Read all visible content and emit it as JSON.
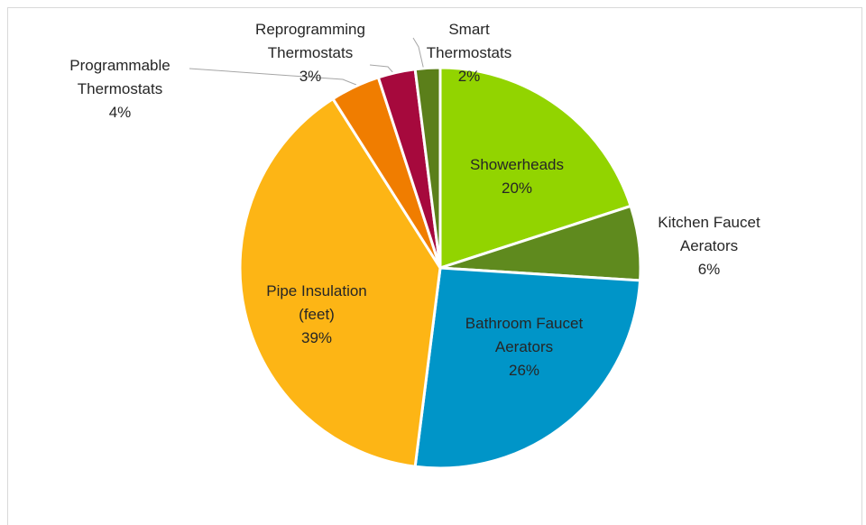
{
  "chart_data": {
    "type": "pie",
    "categories": [
      "Showerheads",
      "Kitchen Faucet Aerators",
      "Bathroom Faucet Aerators",
      "Pipe Insulation (feet)",
      "Programmable Thermostats",
      "Reprogramming Thermostats",
      "Smart Thermostats"
    ],
    "values": [
      20,
      6,
      26,
      39,
      4,
      3,
      2
    ],
    "value_labels": [
      "20%",
      "6%",
      "26%",
      "39%",
      "4%",
      "3%",
      "2%"
    ],
    "colors": [
      "#92d400",
      "#5f8a1e",
      "#0095c8",
      "#fdb515",
      "#f07d00",
      "#a6093d",
      "#5b7f1a"
    ]
  }
}
